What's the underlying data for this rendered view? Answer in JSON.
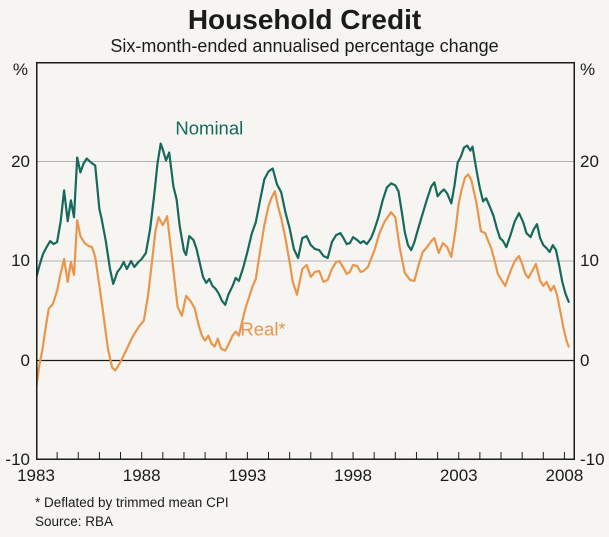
{
  "title": "Household Credit",
  "subtitle": "Six-month-ended annualised percentage change",
  "footnotes": [
    "* Deflated by trimmed mean CPI",
    "Source: RBA"
  ],
  "axis": {
    "unit": "%"
  },
  "colors": {
    "nominal": "#17695B",
    "real": "#E9964B",
    "grid": "#b2b2b2",
    "axis": "#1b1b1b",
    "background": "#f6f5f2"
  },
  "chart_data": {
    "type": "line",
    "title": "Household Credit",
    "subtitle": "Six-month-ended annualised percentage change",
    "ylabel": "%",
    "ylim": [
      -10,
      30
    ],
    "yticks": [
      20,
      10,
      0,
      -10
    ],
    "gridlines_y": [
      20,
      10
    ],
    "zero_line": 0,
    "xlim": [
      1983,
      2008.5
    ],
    "xticks_labeled": [
      1983,
      1988,
      1993,
      1998,
      2003,
      2008
    ],
    "xticks_minor_start": 1984,
    "xticks_minor_end": 2008,
    "xticks_minor_step": 1,
    "legend_position": "inline-labels",
    "series": [
      {
        "name": "Nominal",
        "color": "#17695B",
        "label_pos": {
          "x": 1991.2,
          "y": 23.3
        },
        "points": [
          [
            1983.0,
            8.2
          ],
          [
            1983.17,
            9.6
          ],
          [
            1983.33,
            10.7
          ],
          [
            1983.5,
            11.4
          ],
          [
            1983.67,
            12.0
          ],
          [
            1983.83,
            11.7
          ],
          [
            1984.0,
            11.9
          ],
          [
            1984.17,
            14.0
          ],
          [
            1984.33,
            17.1
          ],
          [
            1984.5,
            14.0
          ],
          [
            1984.65,
            16.1
          ],
          [
            1984.8,
            14.4
          ],
          [
            1984.95,
            20.4
          ],
          [
            1985.1,
            18.9
          ],
          [
            1985.25,
            19.8
          ],
          [
            1985.4,
            20.3
          ],
          [
            1985.6,
            19.9
          ],
          [
            1985.8,
            19.6
          ],
          [
            1986.0,
            15.2
          ],
          [
            1986.1,
            14.3
          ],
          [
            1986.3,
            12.0
          ],
          [
            1986.5,
            9.2
          ],
          [
            1986.65,
            7.7
          ],
          [
            1986.85,
            8.9
          ],
          [
            1987.0,
            9.3
          ],
          [
            1987.15,
            9.9
          ],
          [
            1987.3,
            9.2
          ],
          [
            1987.5,
            10.0
          ],
          [
            1987.65,
            9.4
          ],
          [
            1987.85,
            9.9
          ],
          [
            1988.0,
            10.2
          ],
          [
            1988.2,
            10.8
          ],
          [
            1988.4,
            13.2
          ],
          [
            1988.6,
            16.8
          ],
          [
            1988.75,
            19.8
          ],
          [
            1988.9,
            21.8
          ],
          [
            1989.0,
            21.2
          ],
          [
            1989.15,
            20.1
          ],
          [
            1989.3,
            20.9
          ],
          [
            1989.5,
            17.5
          ],
          [
            1989.65,
            16.2
          ],
          [
            1989.8,
            13.5
          ],
          [
            1990.0,
            11.0
          ],
          [
            1990.1,
            10.6
          ],
          [
            1990.25,
            12.5
          ],
          [
            1990.45,
            12.1
          ],
          [
            1990.6,
            11.2
          ],
          [
            1990.75,
            9.8
          ],
          [
            1990.9,
            8.4
          ],
          [
            1991.05,
            7.8
          ],
          [
            1991.2,
            8.2
          ],
          [
            1991.35,
            7.5
          ],
          [
            1991.5,
            7.2
          ],
          [
            1991.65,
            6.7
          ],
          [
            1991.8,
            6.0
          ],
          [
            1991.95,
            5.6
          ],
          [
            1992.1,
            6.6
          ],
          [
            1992.3,
            7.5
          ],
          [
            1992.45,
            8.3
          ],
          [
            1992.6,
            8.0
          ],
          [
            1992.8,
            9.3
          ],
          [
            1993.0,
            10.9
          ],
          [
            1993.2,
            12.7
          ],
          [
            1993.4,
            13.9
          ],
          [
            1993.6,
            16.1
          ],
          [
            1993.8,
            18.2
          ],
          [
            1994.0,
            19.0
          ],
          [
            1994.2,
            19.3
          ],
          [
            1994.4,
            17.7
          ],
          [
            1994.6,
            16.9
          ],
          [
            1994.8,
            14.9
          ],
          [
            1995.0,
            13.3
          ],
          [
            1995.2,
            11.2
          ],
          [
            1995.4,
            10.3
          ],
          [
            1995.6,
            12.3
          ],
          [
            1995.8,
            12.5
          ],
          [
            1996.0,
            11.6
          ],
          [
            1996.2,
            11.2
          ],
          [
            1996.4,
            11.1
          ],
          [
            1996.6,
            10.5
          ],
          [
            1996.8,
            10.3
          ],
          [
            1997.0,
            11.9
          ],
          [
            1997.2,
            12.6
          ],
          [
            1997.4,
            12.8
          ],
          [
            1997.55,
            12.3
          ],
          [
            1997.7,
            11.7
          ],
          [
            1997.85,
            11.8
          ],
          [
            1998.0,
            12.4
          ],
          [
            1998.2,
            12.1
          ],
          [
            1998.35,
            11.8
          ],
          [
            1998.5,
            12.0
          ],
          [
            1998.65,
            11.7
          ],
          [
            1998.85,
            12.3
          ],
          [
            1999.0,
            13.1
          ],
          [
            1999.2,
            14.4
          ],
          [
            1999.4,
            16.1
          ],
          [
            1999.6,
            17.4
          ],
          [
            1999.8,
            17.8
          ],
          [
            2000.0,
            17.6
          ],
          [
            2000.15,
            17.0
          ],
          [
            2000.3,
            15.0
          ],
          [
            2000.45,
            12.9
          ],
          [
            2000.6,
            11.6
          ],
          [
            2000.75,
            11.1
          ],
          [
            2000.9,
            11.9
          ],
          [
            2001.1,
            13.4
          ],
          [
            2001.3,
            14.8
          ],
          [
            2001.5,
            16.2
          ],
          [
            2001.7,
            17.5
          ],
          [
            2001.85,
            17.9
          ],
          [
            2002.0,
            16.5
          ],
          [
            2002.15,
            16.9
          ],
          [
            2002.3,
            17.2
          ],
          [
            2002.45,
            16.8
          ],
          [
            2002.65,
            15.8
          ],
          [
            2002.8,
            17.6
          ],
          [
            2002.95,
            19.9
          ],
          [
            2003.1,
            20.5
          ],
          [
            2003.25,
            21.4
          ],
          [
            2003.4,
            21.6
          ],
          [
            2003.55,
            21.1
          ],
          [
            2003.65,
            21.5
          ],
          [
            2003.85,
            19.0
          ],
          [
            2004.0,
            17.3
          ],
          [
            2004.15,
            16.0
          ],
          [
            2004.3,
            16.3
          ],
          [
            2004.5,
            15.3
          ],
          [
            2004.65,
            14.5
          ],
          [
            2004.8,
            13.3
          ],
          [
            2004.95,
            12.3
          ],
          [
            2005.1,
            12.0
          ],
          [
            2005.25,
            11.4
          ],
          [
            2005.45,
            12.6
          ],
          [
            2005.65,
            14.0
          ],
          [
            2005.85,
            14.8
          ],
          [
            2006.05,
            13.9
          ],
          [
            2006.2,
            12.8
          ],
          [
            2006.4,
            12.4
          ],
          [
            2006.55,
            13.2
          ],
          [
            2006.7,
            13.7
          ],
          [
            2006.85,
            12.3
          ],
          [
            2007.0,
            11.6
          ],
          [
            2007.15,
            11.3
          ],
          [
            2007.3,
            10.9
          ],
          [
            2007.45,
            11.6
          ],
          [
            2007.6,
            11.1
          ],
          [
            2007.75,
            9.6
          ],
          [
            2007.9,
            7.9
          ],
          [
            2008.05,
            6.7
          ],
          [
            2008.2,
            5.9
          ]
        ]
      },
      {
        "name": "Real*",
        "color": "#E9964B",
        "label_pos": {
          "x": 1993.74,
          "y": 3.1
        },
        "points": [
          [
            1983.0,
            -3.0
          ],
          [
            1983.15,
            -0.5
          ],
          [
            1983.3,
            1.0
          ],
          [
            1983.45,
            3.2
          ],
          [
            1983.6,
            5.2
          ],
          [
            1983.8,
            5.7
          ],
          [
            1984.0,
            7.0
          ],
          [
            1984.15,
            8.6
          ],
          [
            1984.33,
            10.2
          ],
          [
            1984.5,
            7.9
          ],
          [
            1984.65,
            9.9
          ],
          [
            1984.8,
            8.6
          ],
          [
            1984.95,
            14.1
          ],
          [
            1985.1,
            12.5
          ],
          [
            1985.3,
            11.8
          ],
          [
            1985.5,
            11.5
          ],
          [
            1985.65,
            11.4
          ],
          [
            1985.8,
            10.4
          ],
          [
            1986.0,
            7.5
          ],
          [
            1986.15,
            5.2
          ],
          [
            1986.4,
            1.2
          ],
          [
            1986.6,
            -0.7
          ],
          [
            1986.75,
            -1.0
          ],
          [
            1986.9,
            -0.5
          ],
          [
            1987.1,
            0.3
          ],
          [
            1987.35,
            1.4
          ],
          [
            1987.6,
            2.5
          ],
          [
            1987.9,
            3.5
          ],
          [
            1988.1,
            4.0
          ],
          [
            1988.3,
            6.5
          ],
          [
            1988.5,
            10.2
          ],
          [
            1988.65,
            13.0
          ],
          [
            1988.8,
            14.4
          ],
          [
            1989.0,
            13.6
          ],
          [
            1989.2,
            14.5
          ],
          [
            1989.4,
            10.9
          ],
          [
            1989.55,
            8.2
          ],
          [
            1989.7,
            5.4
          ],
          [
            1989.9,
            4.5
          ],
          [
            1990.1,
            6.5
          ],
          [
            1990.3,
            6.0
          ],
          [
            1990.5,
            5.3
          ],
          [
            1990.7,
            3.5
          ],
          [
            1990.85,
            2.5
          ],
          [
            1991.0,
            2.0
          ],
          [
            1991.15,
            2.5
          ],
          [
            1991.3,
            1.7
          ],
          [
            1991.45,
            1.4
          ],
          [
            1991.6,
            2.2
          ],
          [
            1991.75,
            1.2
          ],
          [
            1991.95,
            1.0
          ],
          [
            1992.15,
            1.8
          ],
          [
            1992.3,
            2.5
          ],
          [
            1992.45,
            2.9
          ],
          [
            1992.6,
            2.5
          ],
          [
            1992.75,
            3.9
          ],
          [
            1992.9,
            5.2
          ],
          [
            1993.1,
            6.5
          ],
          [
            1993.25,
            7.5
          ],
          [
            1993.4,
            8.2
          ],
          [
            1993.6,
            11.0
          ],
          [
            1993.8,
            13.6
          ],
          [
            1994.0,
            15.5
          ],
          [
            1994.15,
            16.4
          ],
          [
            1994.3,
            17.0
          ],
          [
            1994.45,
            15.5
          ],
          [
            1994.6,
            14.3
          ],
          [
            1994.8,
            12.3
          ],
          [
            1995.0,
            9.9
          ],
          [
            1995.15,
            7.9
          ],
          [
            1995.35,
            6.6
          ],
          [
            1995.6,
            9.2
          ],
          [
            1995.8,
            9.6
          ],
          [
            1996.0,
            8.4
          ],
          [
            1996.2,
            8.9
          ],
          [
            1996.4,
            9.0
          ],
          [
            1996.6,
            7.9
          ],
          [
            1996.8,
            8.1
          ],
          [
            1997.0,
            9.2
          ],
          [
            1997.2,
            9.9
          ],
          [
            1997.35,
            10.0
          ],
          [
            1997.55,
            9.3
          ],
          [
            1997.7,
            8.7
          ],
          [
            1997.85,
            8.9
          ],
          [
            1998.0,
            9.6
          ],
          [
            1998.2,
            9.5
          ],
          [
            1998.35,
            8.9
          ],
          [
            1998.5,
            9.0
          ],
          [
            1998.7,
            9.4
          ],
          [
            1999.0,
            11.0
          ],
          [
            1999.25,
            12.8
          ],
          [
            1999.5,
            14.0
          ],
          [
            1999.8,
            14.9
          ],
          [
            2000.0,
            14.4
          ],
          [
            2000.2,
            11.4
          ],
          [
            2000.45,
            8.8
          ],
          [
            2000.7,
            8.1
          ],
          [
            2000.9,
            8.0
          ],
          [
            2001.1,
            9.6
          ],
          [
            2001.3,
            10.9
          ],
          [
            2001.5,
            11.4
          ],
          [
            2001.7,
            12.0
          ],
          [
            2001.85,
            12.3
          ],
          [
            2002.05,
            10.8
          ],
          [
            2002.25,
            11.8
          ],
          [
            2002.45,
            11.4
          ],
          [
            2002.65,
            10.4
          ],
          [
            2002.85,
            13.2
          ],
          [
            2003.0,
            15.8
          ],
          [
            2003.15,
            17.3
          ],
          [
            2003.3,
            18.4
          ],
          [
            2003.45,
            18.7
          ],
          [
            2003.6,
            18.1
          ],
          [
            2003.85,
            15.7
          ],
          [
            2004.05,
            13.0
          ],
          [
            2004.25,
            12.8
          ],
          [
            2004.4,
            12.0
          ],
          [
            2004.55,
            11.2
          ],
          [
            2004.7,
            10.0
          ],
          [
            2004.85,
            8.7
          ],
          [
            2005.05,
            8.0
          ],
          [
            2005.2,
            7.5
          ],
          [
            2005.45,
            9.0
          ],
          [
            2005.65,
            10.0
          ],
          [
            2005.85,
            10.5
          ],
          [
            2006.0,
            9.7
          ],
          [
            2006.15,
            8.7
          ],
          [
            2006.3,
            8.3
          ],
          [
            2006.5,
            9.1
          ],
          [
            2006.65,
            9.7
          ],
          [
            2006.85,
            8.0
          ],
          [
            2007.0,
            7.5
          ],
          [
            2007.15,
            7.9
          ],
          [
            2007.35,
            7.0
          ],
          [
            2007.5,
            7.5
          ],
          [
            2007.65,
            6.6
          ],
          [
            2007.8,
            5.0
          ],
          [
            2007.95,
            3.3
          ],
          [
            2008.1,
            2.0
          ],
          [
            2008.2,
            1.4
          ]
        ]
      }
    ]
  }
}
